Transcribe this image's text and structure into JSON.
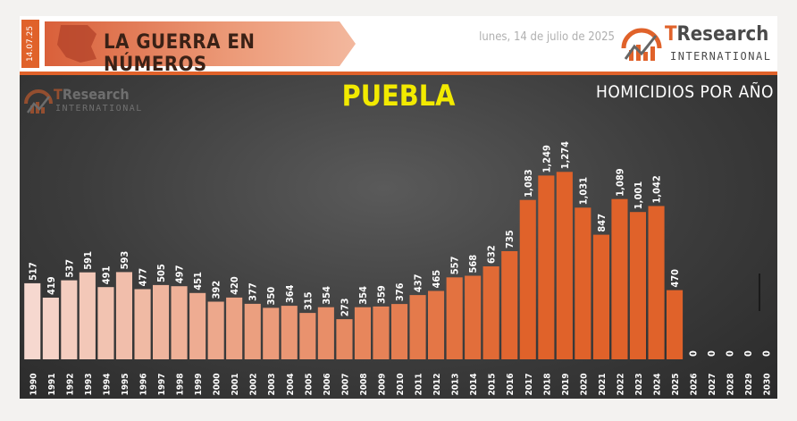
{
  "header": {
    "date_tab": "14.07.25",
    "banner_title": "LA GUERRA EN NÚMEROS",
    "date_text": "lunes, 14 de julio de 2025",
    "logo_brand_prefix": "T",
    "logo_brand_rest": "Research",
    "logo_sub": "INTERNATIONAL"
  },
  "panel_logo": {
    "brand_prefix": "T",
    "brand_rest": "Research",
    "sub": "INTERNATIONAL"
  },
  "colors": {
    "accent": "#e0622a",
    "title_yellow": "#f2ea00",
    "bar_light": "#f6d8cf",
    "bar_dark": "#e0622a"
  },
  "chart_data": {
    "type": "bar",
    "title": "PUEBLA",
    "subtitle": "HOMICIDIOS POR AÑO",
    "categories": [
      "1990",
      "1991",
      "1992",
      "1993",
      "1994",
      "1995",
      "1996",
      "1997",
      "1998",
      "1999",
      "2000",
      "2001",
      "2002",
      "2003",
      "2004",
      "2005",
      "2006",
      "2007",
      "2008",
      "2009",
      "2010",
      "2011",
      "2012",
      "2013",
      "2014",
      "2015",
      "2016",
      "2017",
      "2018",
      "2019",
      "2020",
      "2021",
      "2022",
      "2023",
      "2024",
      "2025",
      "2026",
      "2027",
      "2028",
      "2029",
      "2030"
    ],
    "values": [
      517,
      419,
      537,
      591,
      491,
      593,
      477,
      505,
      497,
      451,
      392,
      420,
      377,
      350,
      364,
      315,
      354,
      273,
      354,
      359,
      376,
      437,
      465,
      557,
      568,
      632,
      735,
      1083,
      1249,
      1274,
      1031,
      847,
      1089,
      1001,
      1042,
      470,
      0,
      0,
      0,
      0,
      0
    ],
    "labels": [
      "517",
      "419",
      "537",
      "591",
      "491",
      "593",
      "477",
      "505",
      "497",
      "451",
      "392",
      "420",
      "377",
      "350",
      "364",
      "315",
      "354",
      "273",
      "354",
      "359",
      "376",
      "437",
      "465",
      "557",
      "568",
      "632",
      "735",
      "1,083",
      "1,249",
      "1,274",
      "1,031",
      "847",
      "1,089",
      "1,001",
      "1,042",
      "470",
      "0",
      "0",
      "0",
      "0",
      "0"
    ],
    "ylim": [
      0,
      1300
    ],
    "grid": false,
    "legend": "none"
  }
}
